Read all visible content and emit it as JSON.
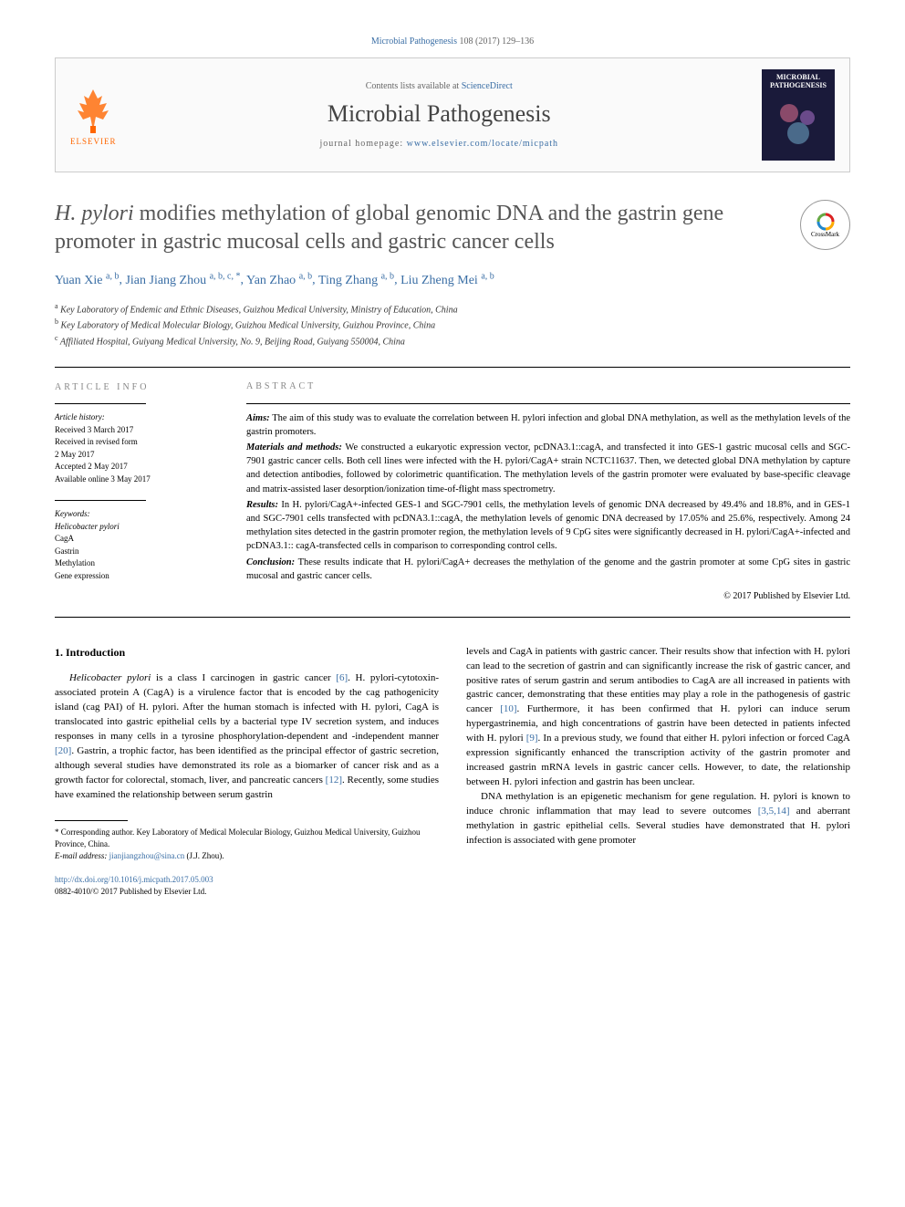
{
  "citation": {
    "journal": "Microbial Pathogenesis",
    "vol": "108",
    "year": "2017",
    "pages": "129–136"
  },
  "masthead": {
    "contents_prefix": "Contents lists available at ",
    "contents_link": "ScienceDirect",
    "journal": "Microbial Pathogenesis",
    "homepage_prefix": "journal homepage: ",
    "homepage": "www.elsevier.com/locate/micpath",
    "elsevier": "ELSEVIER",
    "cover_top": "MICROBIAL",
    "cover_bottom": "PATHOGENESIS"
  },
  "crossmark": "CrossMark",
  "title_line1": "H. pylori",
  "title_rest": " modifies methylation of global genomic DNA and the gastrin gene promoter in gastric mucosal cells and gastric cancer cells",
  "authors": [
    {
      "name": "Yuan Xie",
      "sup": "a, b"
    },
    {
      "name": "Jian Jiang Zhou",
      "sup": "a, b, c, *"
    },
    {
      "name": "Yan Zhao",
      "sup": "a, b"
    },
    {
      "name": "Ting Zhang",
      "sup": "a, b"
    },
    {
      "name": "Liu Zheng Mei",
      "sup": "a, b"
    }
  ],
  "affiliations": [
    {
      "sup": "a",
      "text": "Key Laboratory of Endemic and Ethnic Diseases, Guizhou Medical University, Ministry of Education, China"
    },
    {
      "sup": "b",
      "text": "Key Laboratory of Medical Molecular Biology, Guizhou Medical University, Guizhou Province, China"
    },
    {
      "sup": "c",
      "text": "Affiliated Hospital, Guiyang Medical University, No. 9, Beijing Road, Guiyang 550004, China"
    }
  ],
  "info": {
    "label": "article info",
    "history_label": "Article history:",
    "received": "Received 3 March 2017",
    "revised1": "Received in revised form",
    "revised2": "2 May 2017",
    "accepted": "Accepted 2 May 2017",
    "online": "Available online 3 May 2017",
    "keywords_label": "Keywords:",
    "keywords": [
      "Helicobacter pylori",
      "CagA",
      "Gastrin",
      "Methylation",
      "Gene expression"
    ]
  },
  "abstract": {
    "label": "abstract",
    "aims_label": "Aims:",
    "aims": " The aim of this study was to evaluate the correlation between H. pylori infection and global DNA methylation, as well as the methylation levels of the gastrin promoters.",
    "methods_label": "Materials and methods:",
    "methods": " We constructed a eukaryotic expression vector, pcDNA3.1::cagA, and transfected it into GES-1 gastric mucosal cells and SGC-7901 gastric cancer cells. Both cell lines were infected with the H. pylori/CagA+ strain NCTC11637. Then, we detected global DNA methylation by capture and detection antibodies, followed by colorimetric quantification. The methylation levels of the gastrin promoter were evaluated by base-specific cleavage and matrix-assisted laser desorption/ionization time-of-flight mass spectrometry.",
    "results_label": "Results:",
    "results": " In H. pylori/CagA+-infected GES-1 and SGC-7901 cells, the methylation levels of genomic DNA decreased by 49.4% and 18.8%, and in GES-1 and SGC-7901 cells transfected with pcDNA3.1::cagA, the methylation levels of genomic DNA decreased by 17.05% and 25.6%, respectively. Among 24 methylation sites detected in the gastrin promoter region, the methylation levels of 9 CpG sites were significantly decreased in H. pylori/CagA+-infected and pcDNA3.1:: cagA-transfected cells in comparison to corresponding control cells.",
    "conclusion_label": "Conclusion:",
    "conclusion": " These results indicate that H. pylori/CagA+ decreases the methylation of the genome and the gastrin promoter at some CpG sites in gastric mucosal and gastric cancer cells.",
    "copyright": "© 2017 Published by Elsevier Ltd."
  },
  "body": {
    "heading": "1. Introduction",
    "col1_p1a": "Helicobacter pylori",
    "col1_p1b": " is a class I carcinogen in gastric cancer ",
    "col1_p1_ref1": "[6]",
    "col1_p1c": ". H. pylori-cytotoxin-associated protein A (CagA) is a virulence factor that is encoded by the cag pathogenicity island (cag PAI) of H. pylori. After the human stomach is infected with H. pylori, CagA is translocated into gastric epithelial cells by a bacterial type IV secretion system, and induces responses in many cells in a tyrosine phosphorylation-dependent and -independent manner ",
    "col1_p1_ref2": "[20]",
    "col1_p1d": ". Gastrin, a trophic factor, has been identified as the principal effector of gastric secretion, although several studies have demonstrated its role as a biomarker of cancer risk and as a growth factor for colorectal, stomach, liver, and pancreatic cancers ",
    "col1_p1_ref3": "[12]",
    "col1_p1e": ". Recently, some studies have examined the relationship between serum gastrin",
    "col2_p1a": "levels and CagA in patients with gastric cancer. Their results show that infection with H. pylori can lead to the secretion of gastrin and can significantly increase the risk of gastric cancer, and positive rates of serum gastrin and serum antibodies to CagA are all increased in patients with gastric cancer, demonstrating that these entities may play a role in the pathogenesis of gastric cancer ",
    "col2_p1_ref1": "[10]",
    "col2_p1b": ". Furthermore, it has been confirmed that H. pylori can induce serum hypergastrinemia, and high concentrations of gastrin have been detected in patients infected with H. pylori ",
    "col2_p1_ref2": "[9]",
    "col2_p1c": ". In a previous study, we found that either H. pylori infection or forced CagA expression significantly enhanced the transcription activity of the gastrin promoter and increased gastrin mRNA levels in gastric cancer cells. However, to date, the relationship between H. pylori infection and gastrin has been unclear.",
    "col2_p2a": "DNA methylation is an epigenetic mechanism for gene regulation. H. pylori is known to induce chronic inflammation that may lead to severe outcomes ",
    "col2_p2_ref1": "[3,5,14]",
    "col2_p2b": " and aberrant methylation in gastric epithelial cells. Several studies have demonstrated that H. pylori infection is associated with gene promoter"
  },
  "footnotes": {
    "corresp": "* Corresponding author. Key Laboratory of Medical Molecular Biology, Guizhou Medical University, Guizhou Province, China.",
    "email_label": "E-mail address: ",
    "email": "jianjiangzhou@sina.cn",
    "email_name": " (J.J. Zhou)."
  },
  "doi": {
    "url": "http://dx.doi.org/10.1016/j.micpath.2017.05.003",
    "issn": "0882-4010/© 2017 Published by Elsevier Ltd."
  },
  "colors": {
    "link": "#3a6ea5",
    "elsevier": "#ff6600",
    "cover": "#1a1a3a"
  }
}
